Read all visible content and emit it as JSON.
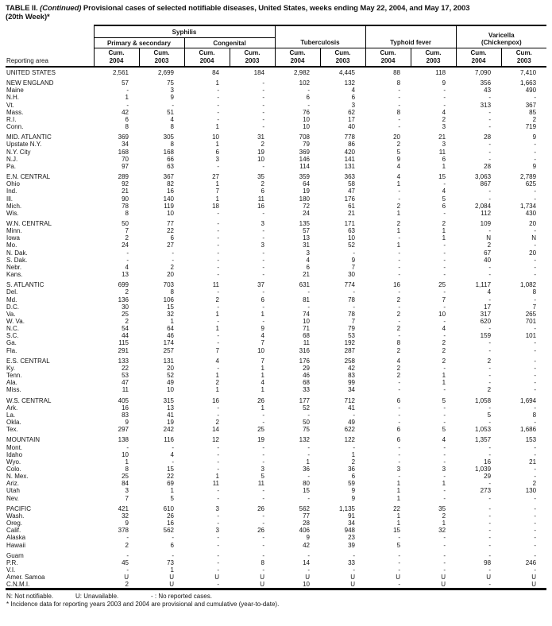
{
  "title": {
    "prefix": "TABLE II.",
    "continued": "(Continued)",
    "text": "Provisional cases of selected notifiable diseases, United States, weeks ending May 22, 2004, and May 17, 2003",
    "week": "(20th Week)*"
  },
  "header": {
    "reporting_area": "Reporting area",
    "groups": {
      "syphilis": "Syphilis",
      "primary_secondary": "Primary & secondary",
      "congenital": "Congenital",
      "tuberculosis": "Tuberculosis",
      "typhoid_fever": "Typhoid fever",
      "varicella_line1": "Varicella",
      "varicella_line2": "(Chickenpox)"
    },
    "column_headers": [
      {
        "line1": "Cum.",
        "line2": "2004"
      },
      {
        "line1": "Cum.",
        "line2": "2003"
      },
      {
        "line1": "Cum.",
        "line2": "2004"
      },
      {
        "line1": "Cum.",
        "line2": "2003"
      },
      {
        "line1": "Cum.",
        "line2": "2004"
      },
      {
        "line1": "Cum.",
        "line2": "2003"
      },
      {
        "line1": "Cum.",
        "line2": "2004"
      },
      {
        "line1": "Cum.",
        "line2": "2003"
      },
      {
        "line1": "Cum.",
        "line2": "2004"
      },
      {
        "line1": "Cum.",
        "line2": "2003"
      }
    ]
  },
  "sections": [
    {
      "rows": [
        {
          "area": "UNITED STATES",
          "values": [
            "2,561",
            "2,699",
            "84",
            "184",
            "2,982",
            "4,445",
            "88",
            "118",
            "7,090",
            "7,410"
          ]
        }
      ]
    },
    {
      "rows": [
        {
          "area": "NEW ENGLAND",
          "values": [
            "57",
            "75",
            "1",
            "-",
            "102",
            "132",
            "8",
            "9",
            "356",
            "1,663"
          ]
        },
        {
          "area": "Maine",
          "values": [
            "-",
            "3",
            "-",
            "-",
            "-",
            "4",
            "-",
            "-",
            "43",
            "490"
          ]
        },
        {
          "area": "N.H.",
          "values": [
            "1",
            "9",
            "-",
            "-",
            "6",
            "6",
            "-",
            "-",
            "-",
            "-"
          ]
        },
        {
          "area": "Vt.",
          "values": [
            "-",
            "-",
            "-",
            "-",
            "-",
            "3",
            "-",
            "-",
            "313",
            "367"
          ]
        },
        {
          "area": "Mass.",
          "values": [
            "42",
            "51",
            "-",
            "-",
            "76",
            "62",
            "8",
            "4",
            "-",
            "85"
          ]
        },
        {
          "area": "R.I.",
          "values": [
            "6",
            "4",
            "-",
            "-",
            "10",
            "17",
            "-",
            "2",
            "-",
            "2"
          ]
        },
        {
          "area": "Conn.",
          "values": [
            "8",
            "8",
            "1",
            "-",
            "10",
            "40",
            "-",
            "3",
            "-",
            "719"
          ]
        }
      ]
    },
    {
      "rows": [
        {
          "area": "MID. ATLANTIC",
          "values": [
            "369",
            "305",
            "10",
            "31",
            "708",
            "778",
            "20",
            "21",
            "28",
            "9"
          ]
        },
        {
          "area": "Upstate N.Y.",
          "values": [
            "34",
            "8",
            "1",
            "2",
            "79",
            "86",
            "2",
            "3",
            "-",
            "-"
          ]
        },
        {
          "area": "N.Y. City",
          "values": [
            "168",
            "168",
            "6",
            "19",
            "369",
            "420",
            "5",
            "11",
            "-",
            "-"
          ]
        },
        {
          "area": "N.J.",
          "values": [
            "70",
            "66",
            "3",
            "10",
            "146",
            "141",
            "9",
            "6",
            "-",
            "-"
          ]
        },
        {
          "area": "Pa.",
          "values": [
            "97",
            "63",
            "-",
            "-",
            "114",
            "131",
            "4",
            "1",
            "28",
            "9"
          ]
        }
      ]
    },
    {
      "rows": [
        {
          "area": "E.N. CENTRAL",
          "values": [
            "289",
            "367",
            "27",
            "35",
            "359",
            "363",
            "4",
            "15",
            "3,063",
            "2,789"
          ]
        },
        {
          "area": "Ohio",
          "values": [
            "92",
            "82",
            "1",
            "2",
            "64",
            "58",
            "1",
            "-",
            "867",
            "625"
          ]
        },
        {
          "area": "Ind.",
          "values": [
            "21",
            "16",
            "7",
            "6",
            "19",
            "47",
            "-",
            "4",
            "-",
            "-"
          ]
        },
        {
          "area": "Ill.",
          "values": [
            "90",
            "140",
            "1",
            "11",
            "180",
            "176",
            "-",
            "5",
            "-",
            "-"
          ]
        },
        {
          "area": "Mich.",
          "values": [
            "78",
            "119",
            "18",
            "16",
            "72",
            "61",
            "2",
            "6",
            "2,084",
            "1,734"
          ]
        },
        {
          "area": "Wis.",
          "values": [
            "8",
            "10",
            "-",
            "-",
            "24",
            "21",
            "1",
            "-",
            "112",
            "430"
          ]
        }
      ]
    },
    {
      "rows": [
        {
          "area": "W.N. CENTRAL",
          "values": [
            "50",
            "77",
            "-",
            "3",
            "135",
            "171",
            "2",
            "2",
            "109",
            "20"
          ]
        },
        {
          "area": "Minn.",
          "values": [
            "7",
            "22",
            "-",
            "-",
            "57",
            "63",
            "1",
            "1",
            "-",
            "-"
          ]
        },
        {
          "area": "Iowa",
          "values": [
            "2",
            "6",
            "-",
            "-",
            "13",
            "10",
            "-",
            "1",
            "N",
            "N"
          ]
        },
        {
          "area": "Mo.",
          "values": [
            "24",
            "27",
            "-",
            "3",
            "31",
            "52",
            "1",
            "-",
            "2",
            "-"
          ]
        },
        {
          "area": "N. Dak.",
          "values": [
            "-",
            "-",
            "-",
            "-",
            "3",
            "-",
            "-",
            "-",
            "67",
            "20"
          ]
        },
        {
          "area": "S. Dak.",
          "values": [
            "-",
            "-",
            "-",
            "-",
            "4",
            "9",
            "-",
            "-",
            "40",
            "-"
          ]
        },
        {
          "area": "Nebr.",
          "values": [
            "4",
            "2",
            "-",
            "-",
            "6",
            "7",
            "-",
            "-",
            "-",
            "-"
          ]
        },
        {
          "area": "Kans.",
          "values": [
            "13",
            "20",
            "-",
            "-",
            "21",
            "30",
            "-",
            "-",
            "-",
            "-"
          ]
        }
      ]
    },
    {
      "rows": [
        {
          "area": "S. ATLANTIC",
          "values": [
            "699",
            "703",
            "11",
            "37",
            "631",
            "774",
            "16",
            "25",
            "1,117",
            "1,082"
          ]
        },
        {
          "area": "Del.",
          "values": [
            "2",
            "8",
            "-",
            "-",
            "-",
            "-",
            "-",
            "-",
            "4",
            "8"
          ]
        },
        {
          "area": "Md.",
          "values": [
            "136",
            "106",
            "2",
            "6",
            "81",
            "78",
            "2",
            "7",
            "-",
            "-"
          ]
        },
        {
          "area": "D.C.",
          "values": [
            "30",
            "15",
            "-",
            "-",
            "-",
            "-",
            "-",
            "-",
            "17",
            "7"
          ]
        },
        {
          "area": "Va.",
          "values": [
            "25",
            "32",
            "1",
            "1",
            "74",
            "78",
            "2",
            "10",
            "317",
            "265"
          ]
        },
        {
          "area": "W. Va.",
          "values": [
            "2",
            "1",
            "-",
            "-",
            "10",
            "7",
            "-",
            "-",
            "620",
            "701"
          ]
        },
        {
          "area": "N.C.",
          "values": [
            "54",
            "64",
            "1",
            "9",
            "71",
            "79",
            "2",
            "4",
            "-",
            "-"
          ]
        },
        {
          "area": "S.C.",
          "values": [
            "44",
            "46",
            "-",
            "4",
            "68",
            "53",
            "-",
            "-",
            "159",
            "101"
          ]
        },
        {
          "area": "Ga.",
          "values": [
            "115",
            "174",
            "-",
            "7",
            "11",
            "192",
            "8",
            "2",
            "-",
            "-"
          ]
        },
        {
          "area": "Fla.",
          "values": [
            "291",
            "257",
            "7",
            "10",
            "316",
            "287",
            "2",
            "2",
            "-",
            "-"
          ]
        }
      ]
    },
    {
      "rows": [
        {
          "area": "E.S. CENTRAL",
          "values": [
            "133",
            "131",
            "4",
            "7",
            "176",
            "258",
            "4",
            "2",
            "2",
            "-"
          ]
        },
        {
          "area": "Ky.",
          "values": [
            "22",
            "20",
            "-",
            "1",
            "29",
            "42",
            "2",
            "-",
            "-",
            "-"
          ]
        },
        {
          "area": "Tenn.",
          "values": [
            "53",
            "52",
            "1",
            "1",
            "46",
            "83",
            "2",
            "1",
            "-",
            "-"
          ]
        },
        {
          "area": "Ala.",
          "values": [
            "47",
            "49",
            "2",
            "4",
            "68",
            "99",
            "-",
            "1",
            "-",
            "-"
          ]
        },
        {
          "area": "Miss.",
          "values": [
            "11",
            "10",
            "1",
            "1",
            "33",
            "34",
            "-",
            "-",
            "2",
            "-"
          ]
        }
      ]
    },
    {
      "rows": [
        {
          "area": "W.S. CENTRAL",
          "values": [
            "405",
            "315",
            "16",
            "26",
            "177",
            "712",
            "6",
            "5",
            "1,058",
            "1,694"
          ]
        },
        {
          "area": "Ark.",
          "values": [
            "16",
            "13",
            "-",
            "1",
            "52",
            "41",
            "-",
            "-",
            "-",
            "-"
          ]
        },
        {
          "area": "La.",
          "values": [
            "83",
            "41",
            "-",
            "-",
            "-",
            "-",
            "-",
            "-",
            "5",
            "8"
          ]
        },
        {
          "area": "Okla.",
          "values": [
            "9",
            "19",
            "2",
            "-",
            "50",
            "49",
            "-",
            "-",
            "-",
            "-"
          ]
        },
        {
          "area": "Tex.",
          "values": [
            "297",
            "242",
            "14",
            "25",
            "75",
            "622",
            "6",
            "5",
            "1,053",
            "1,686"
          ]
        }
      ]
    },
    {
      "rows": [
        {
          "area": "MOUNTAIN",
          "values": [
            "138",
            "116",
            "12",
            "19",
            "132",
            "122",
            "6",
            "4",
            "1,357",
            "153"
          ]
        },
        {
          "area": "Mont.",
          "values": [
            "-",
            "-",
            "-",
            "-",
            "-",
            "-",
            "-",
            "-",
            "-",
            "-"
          ]
        },
        {
          "area": "Idaho",
          "values": [
            "10",
            "4",
            "-",
            "-",
            "-",
            "1",
            "-",
            "-",
            "-",
            "-"
          ]
        },
        {
          "area": "Wyo.",
          "values": [
            "1",
            "-",
            "-",
            "-",
            "1",
            "2",
            "-",
            "-",
            "16",
            "21"
          ]
        },
        {
          "area": "Colo.",
          "values": [
            "8",
            "15",
            "-",
            "3",
            "36",
            "36",
            "3",
            "3",
            "1,039",
            "-"
          ]
        },
        {
          "area": "N. Mex.",
          "values": [
            "25",
            "22",
            "1",
            "5",
            "-",
            "6",
            "-",
            "-",
            "29",
            "-"
          ]
        },
        {
          "area": "Ariz.",
          "values": [
            "84",
            "69",
            "11",
            "11",
            "80",
            "59",
            "1",
            "1",
            "-",
            "2"
          ]
        },
        {
          "area": "Utah",
          "values": [
            "3",
            "1",
            "-",
            "-",
            "15",
            "9",
            "1",
            "-",
            "273",
            "130"
          ]
        },
        {
          "area": "Nev.",
          "values": [
            "7",
            "5",
            "-",
            "-",
            "-",
            "9",
            "1",
            "-",
            "-",
            "-"
          ]
        }
      ]
    },
    {
      "rows": [
        {
          "area": "PACIFIC",
          "values": [
            "421",
            "610",
            "3",
            "26",
            "562",
            "1,135",
            "22",
            "35",
            "-",
            "-"
          ]
        },
        {
          "area": "Wash.",
          "values": [
            "32",
            "26",
            "-",
            "-",
            "77",
            "91",
            "1",
            "2",
            "-",
            "-"
          ]
        },
        {
          "area": "Oreg.",
          "values": [
            "9",
            "16",
            "-",
            "-",
            "28",
            "34",
            "1",
            "1",
            "-",
            "-"
          ]
        },
        {
          "area": "Calif.",
          "values": [
            "378",
            "562",
            "3",
            "26",
            "406",
            "948",
            "15",
            "32",
            "-",
            "-"
          ]
        },
        {
          "area": "Alaska",
          "values": [
            "-",
            "-",
            "-",
            "-",
            "9",
            "23",
            "-",
            "-",
            "-",
            "-"
          ]
        },
        {
          "area": "Hawaii",
          "values": [
            "2",
            "6",
            "-",
            "-",
            "42",
            "39",
            "5",
            "-",
            "-",
            "-"
          ]
        }
      ]
    },
    {
      "rows": [
        {
          "area": "Guam",
          "values": [
            "-",
            "-",
            "-",
            "-",
            "-",
            "-",
            "-",
            "-",
            "-",
            "-"
          ]
        },
        {
          "area": "P.R.",
          "values": [
            "45",
            "73",
            "-",
            "8",
            "14",
            "33",
            "-",
            "-",
            "98",
            "246"
          ]
        },
        {
          "area": "V.I.",
          "values": [
            "-",
            "1",
            "-",
            "-",
            "-",
            "-",
            "-",
            "-",
            "-",
            "-"
          ]
        },
        {
          "area": "Amer. Samoa",
          "values": [
            "U",
            "U",
            "U",
            "U",
            "U",
            "U",
            "U",
            "U",
            "U",
            "U"
          ]
        },
        {
          "area": "C.N.M.I.",
          "values": [
            "2",
            "U",
            "-",
            "U",
            "10",
            "U",
            "-",
            "U",
            "-",
            "U"
          ]
        }
      ]
    }
  ],
  "footnotes": {
    "not_notifiable": "N: Not notifiable.",
    "unavailable": "U: Unavailable.",
    "no_cases": "- : No reported cases.",
    "incidence": "* Incidence data for reporting years 2003 and 2004 are provisional and cumulative (year-to-date)."
  }
}
